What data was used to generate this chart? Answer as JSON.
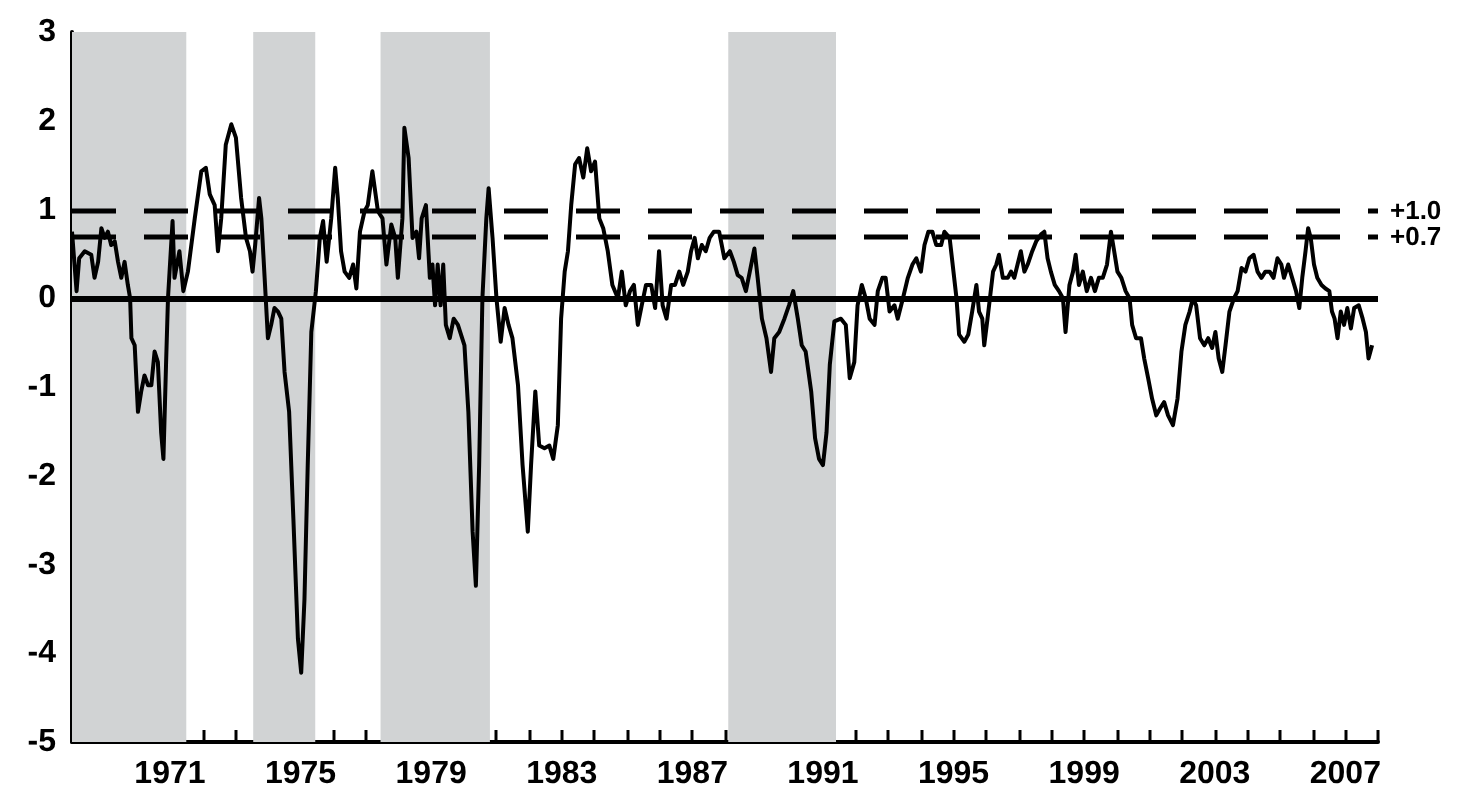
{
  "chart_data": {
    "type": "line",
    "x": [
      1968.0,
      1968.14,
      1968.22,
      1968.39,
      1968.59,
      1968.69,
      1968.8,
      1968.9,
      1969.0,
      1969.1,
      1969.2,
      1969.31,
      1969.41,
      1969.51,
      1969.61,
      1969.71,
      1969.78,
      1969.82,
      1969.92,
      1970.02,
      1970.12,
      1970.22,
      1970.33,
      1970.43,
      1970.53,
      1970.63,
      1970.73,
      1970.8,
      1970.88,
      1970.94,
      1971.08,
      1971.14,
      1971.29,
      1971.41,
      1971.55,
      1971.76,
      1971.96,
      1972.1,
      1972.22,
      1972.37,
      1972.47,
      1972.57,
      1972.71,
      1972.88,
      1973.02,
      1973.18,
      1973.33,
      1973.45,
      1973.53,
      1973.61,
      1973.73,
      1973.8,
      1973.9,
      1974.0,
      1974.1,
      1974.2,
      1974.31,
      1974.41,
      1974.51,
      1974.65,
      1974.78,
      1974.92,
      1975.02,
      1975.12,
      1975.22,
      1975.33,
      1975.47,
      1975.59,
      1975.69,
      1975.8,
      1975.94,
      1976.06,
      1976.14,
      1976.24,
      1976.35,
      1976.49,
      1976.61,
      1976.71,
      1976.82,
      1976.96,
      1977.06,
      1977.2,
      1977.37,
      1977.51,
      1977.63,
      1977.78,
      1977.9,
      1977.98,
      1978.12,
      1978.18,
      1978.31,
      1978.43,
      1978.55,
      1978.63,
      1978.71,
      1978.84,
      1978.96,
      1979.04,
      1979.12,
      1979.2,
      1979.29,
      1979.37,
      1979.45,
      1979.57,
      1979.69,
      1979.82,
      1980.02,
      1980.14,
      1980.27,
      1980.37,
      1980.47,
      1980.57,
      1980.69,
      1980.76,
      1980.88,
      1981.0,
      1981.13,
      1981.25,
      1981.37,
      1981.49,
      1981.66,
      1981.8,
      1981.96,
      1982.06,
      1982.19,
      1982.31,
      1982.47,
      1982.62,
      1982.74,
      1982.88,
      1982.98,
      1983.09,
      1983.19,
      1983.29,
      1983.41,
      1983.53,
      1983.66,
      1983.78,
      1983.9,
      1984.02,
      1984.15,
      1984.27,
      1984.41,
      1984.55,
      1984.72,
      1984.84,
      1984.96,
      1985.09,
      1985.21,
      1985.33,
      1985.45,
      1985.58,
      1985.74,
      1985.86,
      1985.98,
      1986.09,
      1986.21,
      1986.35,
      1986.47,
      1986.6,
      1986.72,
      1986.86,
      1986.96,
      1987.07,
      1987.17,
      1987.29,
      1987.41,
      1987.53,
      1987.66,
      1987.82,
      1987.98,
      1988.15,
      1988.27,
      1988.39,
      1988.51,
      1988.64,
      1988.76,
      1988.9,
      1989.0,
      1989.13,
      1989.27,
      1989.41,
      1989.51,
      1989.66,
      1989.82,
      1989.96,
      1990.09,
      1990.23,
      1990.35,
      1990.47,
      1990.64,
      1990.76,
      1990.88,
      1991.0,
      1991.11,
      1991.21,
      1991.35,
      1991.55,
      1991.7,
      1991.82,
      1991.96,
      1992.06,
      1992.19,
      1992.31,
      1992.43,
      1992.58,
      1992.68,
      1992.82,
      1992.92,
      1993.04,
      1993.19,
      1993.29,
      1993.45,
      1993.6,
      1993.74,
      1993.86,
      1994.0,
      1994.11,
      1994.23,
      1994.35,
      1994.47,
      1994.62,
      1994.72,
      1994.88,
      1995.09,
      1995.17,
      1995.33,
      1995.45,
      1995.57,
      1995.7,
      1995.78,
      1995.88,
      1995.94,
      1996.04,
      1996.21,
      1996.31,
      1996.39,
      1996.51,
      1996.66,
      1996.76,
      1996.86,
      1996.96,
      1997.06,
      1997.17,
      1997.27,
      1997.41,
      1997.53,
      1997.68,
      1997.78,
      1997.88,
      1997.98,
      1998.1,
      1998.23,
      1998.35,
      1998.43,
      1998.55,
      1998.66,
      1998.74,
      1998.84,
      1998.96,
      1999.08,
      1999.21,
      1999.33,
      1999.45,
      1999.57,
      1999.7,
      1999.82,
      1999.92,
      2000.02,
      2000.14,
      2000.27,
      2000.39,
      2000.47,
      2000.59,
      2000.74,
      2000.84,
      2000.96,
      2001.08,
      2001.21,
      2001.33,
      2001.45,
      2001.57,
      2001.72,
      2001.86,
      2001.98,
      2002.1,
      2002.23,
      2002.33,
      2002.43,
      2002.55,
      2002.68,
      2002.8,
      2002.92,
      2003.02,
      2003.12,
      2003.23,
      2003.33,
      2003.45,
      2003.59,
      2003.7,
      2003.82,
      2003.94,
      2004.06,
      2004.19,
      2004.31,
      2004.43,
      2004.55,
      2004.68,
      2004.8,
      2004.92,
      2005.04,
      2005.12,
      2005.25,
      2005.37,
      2005.49,
      2005.59,
      2005.68,
      2005.78,
      2005.86,
      2005.94,
      2006.04,
      2006.14,
      2006.27,
      2006.39,
      2006.51,
      2006.59,
      2006.67,
      2006.76,
      2006.86,
      2006.96,
      2007.06,
      2007.17,
      2007.27,
      2007.41,
      2007.53,
      2007.63,
      2007.71,
      2007.82
    ],
    "series": [
      {
        "color": "#000000",
        "values": [
          0.75,
          0.08,
          0.45,
          0.53,
          0.49,
          0.23,
          0.41,
          0.79,
          0.68,
          0.75,
          0.6,
          0.64,
          0.41,
          0.23,
          0.41,
          0.15,
          0.0,
          -0.45,
          -0.53,
          -1.28,
          -1.05,
          -0.87,
          -0.98,
          -0.98,
          -0.6,
          -0.72,
          -1.51,
          -1.81,
          -0.75,
          0.0,
          0.87,
          0.23,
          0.53,
          0.08,
          0.3,
          0.9,
          1.43,
          1.47,
          1.17,
          1.05,
          0.53,
          0.9,
          1.73,
          1.96,
          1.81,
          1.13,
          0.68,
          0.53,
          0.3,
          0.6,
          1.13,
          0.9,
          0.23,
          -0.45,
          -0.3,
          -0.11,
          -0.15,
          -0.23,
          -0.83,
          -1.28,
          -2.48,
          -3.84,
          -4.22,
          -3.39,
          -1.88,
          -0.38,
          0.08,
          0.68,
          0.87,
          0.41,
          0.9,
          1.47,
          1.13,
          0.53,
          0.3,
          0.23,
          0.38,
          0.11,
          0.75,
          0.98,
          1.05,
          1.43,
          0.98,
          0.9,
          0.38,
          0.83,
          0.68,
          0.23,
          0.9,
          1.92,
          1.58,
          0.68,
          0.75,
          0.45,
          0.9,
          1.05,
          0.23,
          0.38,
          -0.08,
          0.38,
          -0.08,
          0.38,
          -0.3,
          -0.45,
          -0.23,
          -0.3,
          -0.53,
          -1.28,
          -2.63,
          -3.24,
          -1.88,
          0.0,
          0.9,
          1.24,
          0.68,
          0.0,
          -0.49,
          -0.11,
          -0.3,
          -0.45,
          -0.98,
          -1.88,
          -2.63,
          -1.88,
          -1.05,
          -1.66,
          -1.69,
          -1.66,
          -1.81,
          -1.43,
          -0.23,
          0.3,
          0.53,
          1.05,
          1.51,
          1.58,
          1.36,
          1.69,
          1.43,
          1.54,
          0.9,
          0.79,
          0.53,
          0.15,
          0.0,
          0.3,
          -0.08,
          0.08,
          0.15,
          -0.3,
          -0.08,
          0.15,
          0.15,
          -0.11,
          0.53,
          -0.08,
          -0.23,
          0.15,
          0.15,
          0.3,
          0.15,
          0.3,
          0.53,
          0.68,
          0.45,
          0.6,
          0.53,
          0.68,
          0.75,
          0.75,
          0.45,
          0.53,
          0.41,
          0.26,
          0.23,
          0.08,
          0.3,
          0.56,
          0.23,
          -0.23,
          -0.45,
          -0.83,
          -0.45,
          -0.38,
          -0.23,
          -0.08,
          0.08,
          -0.23,
          -0.53,
          -0.6,
          -1.05,
          -1.58,
          -1.81,
          -1.88,
          -1.51,
          -0.75,
          -0.26,
          -0.23,
          -0.3,
          -0.9,
          -0.72,
          -0.08,
          0.15,
          0.0,
          -0.23,
          -0.3,
          0.08,
          0.23,
          0.23,
          -0.15,
          -0.08,
          -0.23,
          0.0,
          0.23,
          0.38,
          0.45,
          0.3,
          0.6,
          0.75,
          0.75,
          0.6,
          0.6,
          0.75,
          0.68,
          0.0,
          -0.41,
          -0.49,
          -0.41,
          -0.15,
          0.15,
          -0.15,
          -0.23,
          -0.53,
          -0.23,
          0.3,
          0.38,
          0.49,
          0.23,
          0.23,
          0.3,
          0.23,
          0.38,
          0.53,
          0.3,
          0.38,
          0.53,
          0.64,
          0.72,
          0.75,
          0.45,
          0.3,
          0.15,
          0.08,
          0.0,
          -0.38,
          0.15,
          0.3,
          0.49,
          0.15,
          0.3,
          0.08,
          0.23,
          0.08,
          0.23,
          0.23,
          0.38,
          0.75,
          0.53,
          0.3,
          0.23,
          0.08,
          0.0,
          -0.3,
          -0.45,
          -0.45,
          -0.68,
          -0.9,
          -1.13,
          -1.32,
          -1.24,
          -1.17,
          -1.32,
          -1.43,
          -1.13,
          -0.6,
          -0.3,
          -0.15,
          0.0,
          -0.08,
          -0.45,
          -0.53,
          -0.45,
          -0.56,
          -0.38,
          -0.68,
          -0.83,
          -0.53,
          -0.15,
          0.0,
          0.08,
          0.34,
          0.3,
          0.45,
          0.49,
          0.3,
          0.23,
          0.3,
          0.3,
          0.23,
          0.45,
          0.38,
          0.23,
          0.38,
          0.23,
          0.08,
          -0.11,
          0.23,
          0.53,
          0.79,
          0.68,
          0.38,
          0.23,
          0.15,
          0.11,
          0.08,
          -0.15,
          -0.23,
          -0.45,
          -0.15,
          -0.3,
          -0.11,
          -0.34,
          -0.11,
          -0.08,
          -0.23,
          -0.38,
          -0.68,
          -0.53
        ]
      }
    ],
    "xlim": [
      1968,
      2008
    ],
    "xticks": [
      {
        "value": 1968,
        "label": null
      },
      {
        "value": 1969,
        "label": null
      },
      {
        "value": 1970,
        "label": null
      },
      1971,
      {
        "value": 1972,
        "label": null
      },
      {
        "value": 1973,
        "label": null
      },
      {
        "value": 1974,
        "label": null
      },
      1975,
      {
        "value": 1976,
        "label": null
      },
      {
        "value": 1977,
        "label": null
      },
      {
        "value": 1978,
        "label": null
      },
      1979,
      {
        "value": 1980,
        "label": null
      },
      {
        "value": 1981,
        "label": null
      },
      {
        "value": 1982,
        "label": null
      },
      1983,
      {
        "value": 1984,
        "label": null
      },
      {
        "value": 1985,
        "label": null
      },
      {
        "value": 1986,
        "label": null
      },
      1987,
      {
        "value": 1988,
        "label": null
      },
      {
        "value": 1989,
        "label": null
      },
      {
        "value": 1990,
        "label": null
      },
      1991,
      {
        "value": 1992,
        "label": null
      },
      {
        "value": 1993,
        "label": null
      },
      {
        "value": 1994,
        "label": null
      },
      1995,
      {
        "value": 1996,
        "label": null
      },
      {
        "value": 1997,
        "label": null
      },
      {
        "value": 1998,
        "label": null
      },
      1999,
      {
        "value": 2000,
        "label": null
      },
      {
        "value": 2001,
        "label": null
      },
      {
        "value": 2002,
        "label": null
      },
      2003,
      {
        "value": 2004,
        "label": null
      },
      {
        "value": 2005,
        "label": null
      },
      {
        "value": 2006,
        "label": null
      },
      2007,
      {
        "value": 2008,
        "label": null
      }
    ],
    "ylim": [
      -5,
      3
    ],
    "yticks": [
      -5,
      -4,
      -3,
      -2,
      -1,
      0,
      1,
      2,
      3
    ],
    "bands": [
      {
        "axis": "x",
        "from": 1968,
        "to": 1971.5,
        "color": "#d1d3d4"
      },
      {
        "axis": "x",
        "from": 1973.55,
        "to": 1975.45,
        "color": "#d1d3d4"
      },
      {
        "axis": "x",
        "from": 1977.45,
        "to": 1980.8,
        "color": "#d1d3d4"
      },
      {
        "axis": "x",
        "from": 1988.1,
        "to": 1991.4,
        "color": "#d1d3d4"
      }
    ],
    "ref_lines": [
      {
        "axis": "y",
        "value": 1.0,
        "label": "+1.0",
        "color": "#000000",
        "line_style": "dashed"
      },
      {
        "axis": "y",
        "value": 0.7,
        "label": "+0.7",
        "color": "#000000",
        "line_style": "dashed"
      },
      {
        "axis": "y",
        "value": 0,
        "color": "#000000",
        "line_style": "solid"
      }
    ],
    "marker": "none",
    "grid": false
  }
}
